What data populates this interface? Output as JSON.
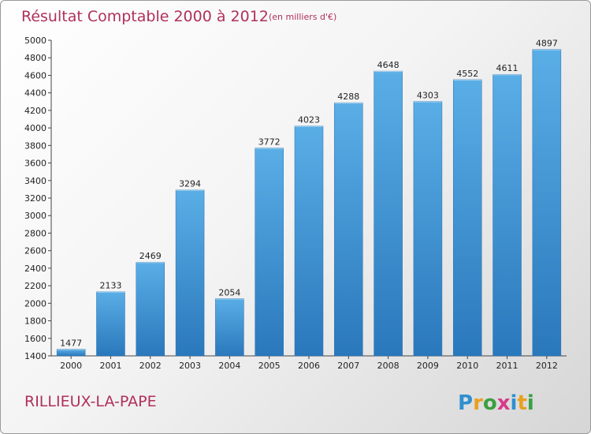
{
  "chart_data": {
    "type": "bar",
    "title": "Résultat Comptable 2000 à 2012",
    "subtitle": "(en milliers d'€)",
    "categories": [
      "2000",
      "2001",
      "2002",
      "2003",
      "2004",
      "2005",
      "2006",
      "2007",
      "2008",
      "2009",
      "2010",
      "2011",
      "2012"
    ],
    "values": [
      1477,
      2133,
      2469,
      3294,
      2054,
      3772,
      4023,
      4288,
      4648,
      4303,
      4552,
      4611,
      4897
    ],
    "ylim": [
      1400,
      5000
    ],
    "yticks": [
      1400,
      1600,
      1800,
      2000,
      2200,
      2400,
      2600,
      2800,
      3000,
      3200,
      3400,
      3600,
      3800,
      4000,
      4200,
      4400,
      4600,
      4800,
      5000
    ],
    "xlabel": "",
    "ylabel": "",
    "grid": false,
    "legend": "none",
    "bar_color": "#3d8fd0"
  },
  "footer": {
    "city": "RILLIEUX-LA-PAPE"
  },
  "logo": {
    "letters": [
      "P",
      "r",
      "o",
      "x",
      "i",
      "t",
      "i"
    ],
    "colors": [
      "#2f8fd0",
      "#e8a020",
      "#3aa040",
      "#d83a8a",
      "#2f8fd0",
      "#e8a020",
      "#3aa040"
    ]
  }
}
